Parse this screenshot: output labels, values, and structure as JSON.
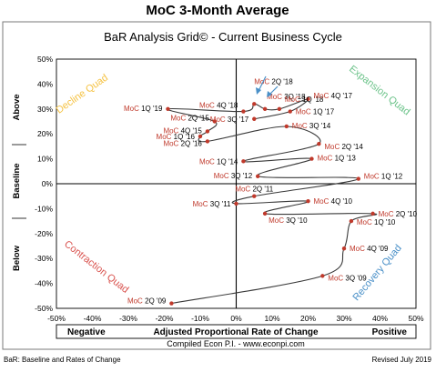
{
  "header": {
    "title": "MoC 3-Month Average"
  },
  "chart_data": {
    "type": "line",
    "title": "BaR Analysis Grid© - Current Business Cycle",
    "xlabel": "Adjusted Proportional Rate of Change",
    "ylabel_top": "Above",
    "ylabel_mid": "Baseline",
    "ylabel_bottom": "Below",
    "x_end_left": "Negative",
    "x_end_right": "Positive",
    "xlim": [
      -0.5,
      0.5
    ],
    "ylim": [
      -0.5,
      0.5
    ],
    "x_ticks": [
      -0.5,
      -0.4,
      -0.3,
      -0.2,
      -0.1,
      0,
      0.1,
      0.2,
      0.3,
      0.4,
      0.5
    ],
    "x_tick_labels": [
      "-50%",
      "-40%",
      "-30%",
      "-20%",
      "-10%",
      "0%",
      "10%",
      "20%",
      "30%",
      "40%",
      "50%"
    ],
    "y_ticks": [
      0.5,
      0.4,
      0.3,
      0.2,
      0.1,
      0,
      -0.1,
      -0.2,
      -0.3,
      -0.4,
      -0.5
    ],
    "y_tick_labels": [
      "50%",
      "40%",
      "30%",
      "20%",
      "10%",
      "0%",
      "-10%",
      "-20%",
      "-30%",
      "-40%",
      "-50%"
    ],
    "grid": false,
    "quadrants": {
      "top_left": "Decline Quad",
      "top_right": "Expansion Quad",
      "bottom_left": "Contraction Quad",
      "bottom_right": "Recovery Quad"
    },
    "quadrant_colors": {
      "top_left": "#f5c242",
      "top_right": "#6cc38a",
      "bottom_left": "#d9534f",
      "bottom_right": "#4a90c8"
    },
    "line_color": "#3a3a3a",
    "marker_color": "#c0392b",
    "label_prefix": "MoC",
    "points": [
      {
        "label": "2Q '09",
        "x": -0.18,
        "y": -0.48
      },
      {
        "label": "3Q '09",
        "x": 0.24,
        "y": -0.37
      },
      {
        "label": "4Q '09",
        "x": 0.3,
        "y": -0.26
      },
      {
        "label": "1Q '10",
        "x": 0.32,
        "y": -0.15
      },
      {
        "label": "2Q '10",
        "x": 0.38,
        "y": -0.12
      },
      {
        "label": "3Q '10",
        "x": 0.08,
        "y": -0.12
      },
      {
        "label": "4Q '10",
        "x": 0.2,
        "y": -0.07
      },
      {
        "label": "3Q '11",
        "x": 0.0,
        "y": -0.08
      },
      {
        "label": "2Q '11",
        "x": 0.05,
        "y": -0.05
      },
      {
        "label": "1Q '12",
        "x": 0.34,
        "y": 0.02
      },
      {
        "label": "3Q '12",
        "x": 0.06,
        "y": 0.03
      },
      {
        "label": "1Q '13",
        "x": 0.21,
        "y": 0.1
      },
      {
        "label": "1Q '14",
        "x": 0.02,
        "y": 0.09
      },
      {
        "label": "2Q '14",
        "x": 0.23,
        "y": 0.16
      },
      {
        "label": "3Q '14",
        "x": 0.14,
        "y": 0.23
      },
      {
        "label": "2Q '16",
        "x": -0.08,
        "y": 0.17
      },
      {
        "label": "1Q '16",
        "x": -0.1,
        "y": 0.19
      },
      {
        "label": "4Q '15",
        "x": -0.08,
        "y": 0.21
      },
      {
        "label": "2Q '15",
        "x": -0.06,
        "y": 0.25
      },
      {
        "label": "1Q '19",
        "x": -0.19,
        "y": 0.3
      },
      {
        "label": "4Q '18",
        "x": 0.02,
        "y": 0.29
      },
      {
        "label": "2Q '18",
        "x": 0.05,
        "y": 0.32
      },
      {
        "label": "3Q '18",
        "x": 0.08,
        "y": 0.3
      },
      {
        "label": "1Q '18",
        "x": 0.12,
        "y": 0.3
      },
      {
        "label": "4Q '17",
        "x": 0.2,
        "y": 0.34
      },
      {
        "label": "1Q '17",
        "x": 0.15,
        "y": 0.29
      },
      {
        "label": "3Q '17",
        "x": 0.05,
        "y": 0.26
      }
    ]
  },
  "footer": {
    "compiled": "Compiled Econ P.I. - www.econpi.com",
    "legend": "BaR: Baseline and Rates of Change",
    "revised": "Revised July 2019"
  }
}
